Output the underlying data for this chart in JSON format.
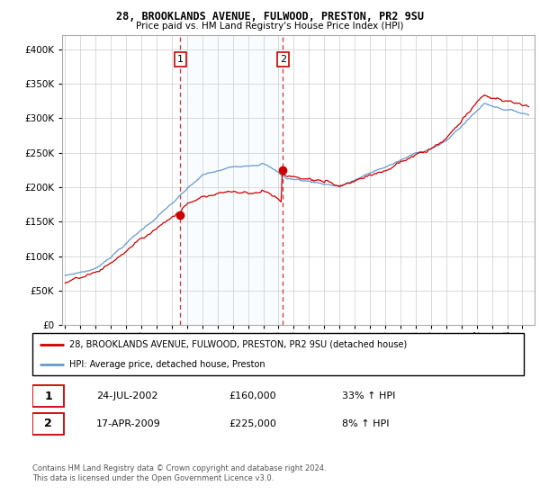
{
  "title1": "28, BROOKLANDS AVENUE, FULWOOD, PRESTON, PR2 9SU",
  "title2": "Price paid vs. HM Land Registry's House Price Index (HPI)",
  "legend_line1": "28, BROOKLANDS AVENUE, FULWOOD, PRESTON, PR2 9SU (detached house)",
  "legend_line2": "HPI: Average price, detached house, Preston",
  "sale1_date": "24-JUL-2002",
  "sale1_price": 160000,
  "sale1_hpi_pct": "33% ↑ HPI",
  "sale2_date": "17-APR-2009",
  "sale2_price": 225000,
  "sale2_hpi_pct": "8% ↑ HPI",
  "footer": "Contains HM Land Registry data © Crown copyright and database right 2024.\nThis data is licensed under the Open Government Licence v3.0.",
  "red_color": "#cc0000",
  "blue_color": "#6699cc",
  "blue_fill_color": "#ddeeff",
  "sale1_year": 2002.56,
  "sale2_year": 2009.29,
  "ylim_max": 420000,
  "xlim_start": 1994.8,
  "xlim_end": 2025.8
}
